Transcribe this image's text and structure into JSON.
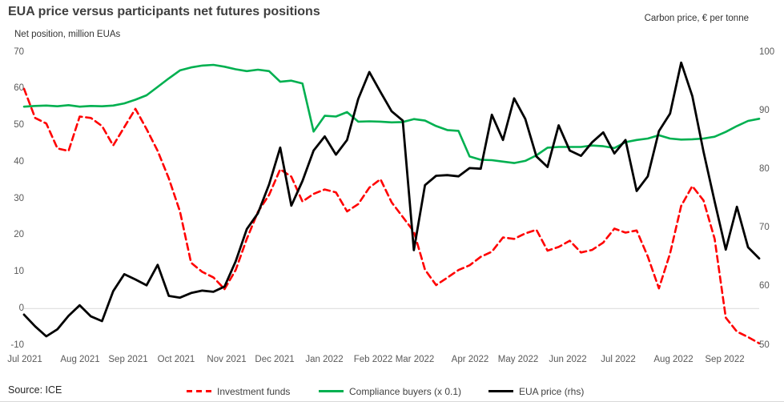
{
  "title": "EUA price versus participants net futures positions",
  "axis_captions": {
    "left": "Net position, million EUAs",
    "right": "Carbon price, € per tonne"
  },
  "source": "Source: ICE",
  "colors": {
    "investment_funds": "#FF0000",
    "compliance_buyers": "#00B050",
    "eua_price": "#000000",
    "gridline": "#D9D9D9",
    "tick_text": "#595959",
    "title_text": "#3F3F3F"
  },
  "chart_data": {
    "type": "line",
    "x_unit": "weekly, Jul 2021 - Sep 2022",
    "x_labels": [
      "Jul 2021",
      "Aug 2021",
      "Sep 2021",
      "Oct 2021",
      "Nov 2021",
      "Dec 2021",
      "Jan 2022",
      "Feb 2022",
      "Mar 2022",
      "Apr 2022",
      "May 2022",
      "Jun 2022",
      "Jul 2022",
      "Aug 2022",
      "Sep 2022"
    ],
    "left_axis": {
      "label": "Net position, million EUAs",
      "ticks": [
        70,
        60,
        50,
        40,
        30,
        20,
        10,
        0,
        -10
      ],
      "range": [
        -10,
        70
      ]
    },
    "right_axis": {
      "label": "Carbon price, € per tonne",
      "ticks": [
        100,
        90,
        80,
        70,
        60,
        50
      ],
      "range": [
        50,
        100
      ]
    },
    "grid_y_left_values": [
      0
    ],
    "legend_position": "bottom",
    "series": [
      {
        "name": "Investment funds",
        "axis": "left",
        "color": "#FF0000",
        "dash": true,
        "values": [
          60,
          52,
          50.5,
          43.7,
          43,
          52.4,
          52,
          49.8,
          44.5,
          49.5,
          54.5,
          49,
          43,
          35.5,
          26.5,
          12.5,
          10,
          8.5,
          5.3,
          10.5,
          19,
          26.4,
          31,
          38,
          36,
          29.2,
          31.3,
          32.5,
          31.7,
          26.5,
          28.5,
          33,
          35.3,
          29,
          25,
          21,
          10.6,
          6.4,
          8.4,
          10.5,
          11.8,
          14.1,
          15.5,
          19.4,
          19,
          20.5,
          21.5,
          15.8,
          16.8,
          18.5,
          15.3,
          16,
          18,
          21.8,
          20.7,
          21.3,
          14.2,
          5.5,
          15,
          28,
          33.4,
          29.5,
          19,
          -2.5,
          -6.3,
          -7.8,
          -9.5
        ]
      },
      {
        "name": "Compliance buyers (x 0.1)",
        "axis": "left",
        "color": "#00B050",
        "dash": false,
        "values": [
          55.1,
          55.3,
          55.4,
          55.2,
          55.5,
          55.1,
          55.3,
          55.2,
          55.4,
          56,
          57,
          58.2,
          60.5,
          62.8,
          65,
          65.8,
          66.3,
          66.5,
          66,
          65.3,
          64.8,
          65.2,
          64.8,
          61.9,
          62.2,
          61.4,
          48.3,
          52.6,
          52.4,
          53.6,
          51,
          51.1,
          51,
          50.8,
          50.9,
          51.7,
          51.3,
          49.8,
          48.7,
          48.5,
          41.5,
          40.6,
          40.5,
          40.1,
          39.7,
          40.3,
          41.8,
          43.9,
          44.1,
          44.1,
          44.1,
          44.5,
          44.3,
          43.8,
          45.4,
          46,
          46.4,
          47.3,
          46.4,
          46.1,
          46.2,
          46.4,
          46.9,
          48.2,
          49.8,
          51.2,
          51.8
        ]
      },
      {
        "name": "EUA price (rhs)",
        "axis": "right",
        "color": "#000000",
        "dash": false,
        "values": [
          55.2,
          53.2,
          51.5,
          52.7,
          55,
          56.8,
          54.9,
          54.1,
          59.2,
          62.1,
          61.2,
          60.2,
          63.7,
          58.4,
          58.1,
          58.9,
          59.3,
          59.1,
          60,
          64.3,
          69.8,
          72.5,
          77.4,
          83.7,
          73.8,
          78,
          83.2,
          85.6,
          82.5,
          85,
          92,
          96.6,
          93.2,
          89.9,
          88.3,
          66.2,
          77.3,
          78.9,
          79,
          78.8,
          80.2,
          80.1,
          89.3,
          85,
          92.1,
          88.6,
          82.2,
          80.4,
          87.5,
          83.2,
          82.3,
          84.6,
          86.3,
          82.7,
          85,
          76.3,
          78.8,
          86.5,
          89.5,
          98.2,
          92.5,
          83,
          74.5,
          66.3,
          73.6,
          66.7,
          64.8
        ]
      }
    ]
  }
}
